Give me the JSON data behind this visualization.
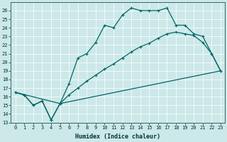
{
  "xlabel": "Humidex (Indice chaleur)",
  "background_color": "#cce8e8",
  "grid_color": "#b0d4d4",
  "line_color": "#006666",
  "xlim": [
    -0.5,
    23.5
  ],
  "ylim": [
    13,
    27
  ],
  "xtick_labels": [
    "0",
    "1",
    "2",
    "3",
    "4",
    "5",
    "6",
    "7",
    "8",
    "9",
    "10",
    "11",
    "12",
    "13",
    "14",
    "15",
    "16",
    "17",
    "18",
    "19",
    "20",
    "21",
    "22",
    "23"
  ],
  "ytick_values": [
    13,
    14,
    15,
    16,
    17,
    18,
    19,
    20,
    21,
    22,
    23,
    24,
    25,
    26
  ],
  "series1_x": [
    0,
    1,
    2,
    3,
    4,
    5,
    6,
    7,
    8,
    9,
    10,
    11,
    12,
    13,
    14,
    15,
    16,
    17,
    18,
    19,
    20,
    21,
    22,
    23
  ],
  "series1_y": [
    16.5,
    16.2,
    15.0,
    15.5,
    13.3,
    15.2,
    17.5,
    20.5,
    21.0,
    22.3,
    24.3,
    24.0,
    25.5,
    26.3,
    26.0,
    26.0,
    26.0,
    26.3,
    24.3,
    24.3,
    23.3,
    23.0,
    21.0,
    19.0
  ],
  "series2_x": [
    0,
    1,
    2,
    3,
    4,
    5,
    6,
    7,
    8,
    9,
    10,
    11,
    12,
    13,
    14,
    15,
    16,
    17,
    18,
    19,
    20,
    21,
    22,
    23
  ],
  "series2_y": [
    16.5,
    16.2,
    15.0,
    15.5,
    13.3,
    15.2,
    16.2,
    17.0,
    17.8,
    18.5,
    19.2,
    19.8,
    20.5,
    21.2,
    21.8,
    22.2,
    22.8,
    23.3,
    23.5,
    23.3,
    23.1,
    22.3,
    21.0,
    19.0
  ],
  "series3_x": [
    0,
    5,
    23
  ],
  "series3_y": [
    16.5,
    15.2,
    19.0
  ]
}
